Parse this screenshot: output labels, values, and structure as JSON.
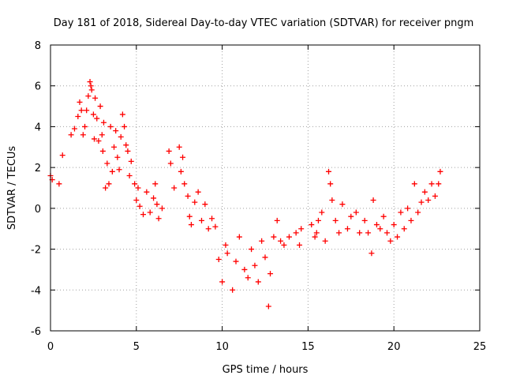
{
  "chart_data": {
    "type": "scatter",
    "title": "Day 181 of 2018, Sidereal Day-to-day VTEC variation (SDTVAR) for receiver pngm",
    "xlabel": "GPS time / hours",
    "ylabel": "SDTVAR / TECUs",
    "xlim": [
      0,
      25
    ],
    "ylim": [
      -6,
      8
    ],
    "xticks": [
      0,
      5,
      10,
      15,
      20,
      25
    ],
    "yticks": [
      -6,
      -4,
      -2,
      0,
      2,
      4,
      6,
      8
    ],
    "xtick_labels": [
      "0",
      "5",
      "10",
      "15",
      "20",
      "25"
    ],
    "ytick_labels": [
      "-6",
      "-4",
      "-2",
      "0",
      "2",
      "4",
      "6",
      "8"
    ],
    "grid": true,
    "marker": "+",
    "series_color": "#ff0000",
    "series": [
      {
        "name": "SDTVAR",
        "x": [
          0.0,
          0.1,
          0.5,
          0.7,
          1.2,
          1.4,
          1.6,
          1.7,
          1.8,
          1.9,
          2.0,
          2.1,
          2.2,
          2.3,
          2.35,
          2.4,
          2.5,
          2.55,
          2.6,
          2.7,
          2.8,
          2.9,
          3.0,
          3.05,
          3.1,
          3.2,
          3.3,
          3.4,
          3.5,
          3.6,
          3.7,
          3.8,
          3.9,
          4.0,
          4.1,
          4.2,
          4.3,
          4.4,
          4.5,
          4.6,
          4.7,
          4.9,
          5.0,
          5.1,
          5.2,
          5.4,
          5.6,
          5.8,
          6.0,
          6.1,
          6.2,
          6.3,
          6.5,
          6.9,
          7.0,
          7.2,
          7.5,
          7.6,
          7.7,
          7.8,
          8.0,
          8.1,
          8.2,
          8.4,
          8.6,
          8.8,
          9.0,
          9.2,
          9.4,
          9.6,
          9.8,
          10.0,
          10.2,
          10.3,
          10.6,
          10.8,
          11.0,
          11.3,
          11.5,
          11.7,
          11.9,
          12.1,
          12.3,
          12.5,
          12.7,
          12.8,
          13.0,
          13.2,
          13.4,
          13.6,
          13.9,
          14.3,
          14.5,
          14.6,
          15.2,
          15.4,
          15.5,
          15.6,
          15.8,
          16.0,
          16.2,
          16.3,
          16.4,
          16.6,
          16.8,
          17.0,
          17.3,
          17.5,
          17.8,
          18.0,
          18.3,
          18.5,
          18.7,
          18.8,
          19.0,
          19.2,
          19.4,
          19.6,
          19.8,
          20.0,
          20.2,
          20.4,
          20.6,
          20.8,
          21.0,
          21.2,
          21.4,
          21.6,
          21.8,
          22.0,
          22.2,
          22.4,
          22.6,
          22.7
        ],
        "y": [
          1.6,
          1.4,
          1.2,
          2.6,
          3.6,
          3.9,
          4.5,
          5.2,
          4.8,
          3.6,
          4.0,
          4.8,
          5.5,
          6.2,
          6.0,
          5.8,
          4.6,
          3.4,
          5.4,
          4.4,
          3.3,
          5.0,
          3.6,
          2.8,
          4.2,
          1.0,
          2.2,
          1.2,
          4.0,
          1.8,
          3.0,
          3.8,
          2.5,
          1.9,
          3.5,
          4.6,
          4.0,
          3.1,
          2.8,
          1.6,
          2.3,
          1.2,
          0.4,
          1.0,
          0.1,
          -0.3,
          0.8,
          -0.2,
          0.5,
          1.2,
          0.2,
          -0.5,
          0.0,
          2.8,
          2.2,
          1.0,
          3.0,
          1.8,
          2.5,
          1.2,
          0.6,
          -0.4,
          -0.8,
          0.3,
          0.8,
          -0.6,
          0.2,
          -1.0,
          -0.5,
          -0.9,
          -2.5,
          -3.6,
          -1.8,
          -2.2,
          -4.0,
          -2.6,
          -1.4,
          -3.0,
          -3.4,
          -2.0,
          -2.8,
          -3.6,
          -1.6,
          -2.4,
          -4.8,
          -3.2,
          -1.4,
          -0.6,
          -1.6,
          -1.8,
          -1.4,
          -1.2,
          -1.8,
          -1.0,
          -0.8,
          -1.4,
          -1.2,
          -0.6,
          -0.2,
          -1.6,
          1.8,
          1.2,
          0.4,
          -0.6,
          -1.2,
          0.2,
          -1.0,
          -0.4,
          -0.2,
          -1.2,
          -0.6,
          -1.2,
          -2.2,
          0.4,
          -0.8,
          -1.0,
          -0.4,
          -1.2,
          -1.6,
          -0.8,
          -1.4,
          -0.2,
          -1.0,
          0.0,
          -0.6,
          1.2,
          -0.2,
          0.3,
          0.8,
          0.4,
          1.2,
          0.6,
          1.2,
          1.8
        ]
      }
    ]
  }
}
